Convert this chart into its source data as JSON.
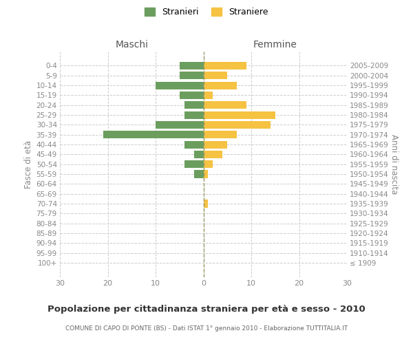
{
  "age_groups": [
    "100+",
    "95-99",
    "90-94",
    "85-89",
    "80-84",
    "75-79",
    "70-74",
    "65-69",
    "60-64",
    "55-59",
    "50-54",
    "45-49",
    "40-44",
    "35-39",
    "30-34",
    "25-29",
    "20-24",
    "15-19",
    "10-14",
    "5-9",
    "0-4"
  ],
  "birth_years": [
    "≤ 1909",
    "1910-1914",
    "1915-1919",
    "1920-1924",
    "1925-1929",
    "1930-1934",
    "1935-1939",
    "1940-1944",
    "1945-1949",
    "1950-1954",
    "1955-1959",
    "1960-1964",
    "1965-1969",
    "1970-1974",
    "1975-1979",
    "1980-1984",
    "1985-1989",
    "1990-1994",
    "1995-1999",
    "2000-2004",
    "2005-2009"
  ],
  "males": [
    0,
    0,
    0,
    0,
    0,
    0,
    0,
    0,
    0,
    2,
    4,
    2,
    4,
    21,
    10,
    4,
    4,
    5,
    10,
    5,
    5
  ],
  "females": [
    0,
    0,
    0,
    0,
    0,
    0,
    1,
    0,
    0,
    1,
    2,
    4,
    5,
    7,
    14,
    15,
    9,
    2,
    7,
    5,
    9
  ],
  "male_color": "#6b9e5e",
  "female_color": "#f5c242",
  "grid_color": "#cccccc",
  "title": "Popolazione per cittadinanza straniera per età e sesso - 2010",
  "subtitle": "COMUNE DI CAPO DI PONTE (BS) - Dati ISTAT 1° gennaio 2010 - Elaborazione TUTTITALIA.IT",
  "legend_stranieri": "Stranieri",
  "legend_straniere": "Straniere",
  "header_left": "Maschi",
  "header_right": "Femmine",
  "ylabel_left": "Fasce di età",
  "ylabel_right": "Anni di nascita",
  "xlim": 30,
  "bg_color": "#ffffff"
}
